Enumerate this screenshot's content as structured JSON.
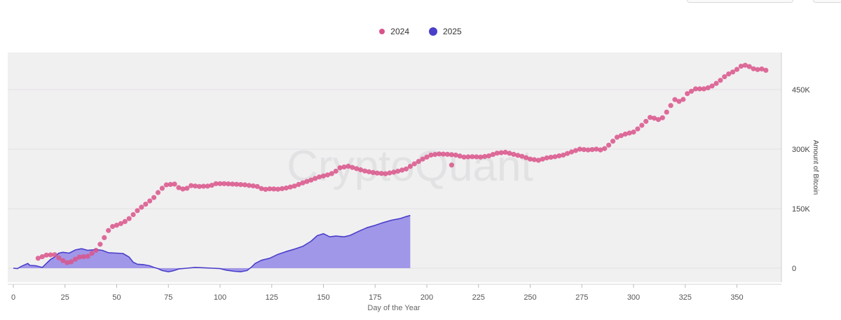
{
  "chart_data": {
    "type": "scatter+area",
    "watermark": "CryptoQuant",
    "xlabel": "Day of the Year",
    "ylabel": "Amount of Bitcoin",
    "xlim": [
      0,
      370
    ],
    "ylim": [
      -25000,
      540000
    ],
    "x_ticks": [
      0,
      25,
      50,
      75,
      100,
      125,
      150,
      175,
      200,
      225,
      250,
      275,
      300,
      325,
      350
    ],
    "y_ticks": [
      {
        "value": 0,
        "label": "0"
      },
      {
        "value": 150000,
        "label": "150K"
      },
      {
        "value": 300000,
        "label": "300K"
      },
      {
        "value": 450000,
        "label": "450K"
      }
    ],
    "series": [
      {
        "name": "2024",
        "type": "scatter",
        "color": "#d9538a",
        "keypoints": [
          [
            12,
            25000
          ],
          [
            16,
            33000
          ],
          [
            20,
            34000
          ],
          [
            23,
            22000
          ],
          [
            25,
            16000
          ],
          [
            27,
            12000
          ],
          [
            29,
            20000
          ],
          [
            32,
            28000
          ],
          [
            36,
            30000
          ],
          [
            40,
            45000
          ],
          [
            43,
            68000
          ],
          [
            46,
            95000
          ],
          [
            48,
            105000
          ],
          [
            51,
            110000
          ],
          [
            55,
            120000
          ],
          [
            58,
            135000
          ],
          [
            61,
            150000
          ],
          [
            65,
            165000
          ],
          [
            68,
            178000
          ],
          [
            71,
            197000
          ],
          [
            74,
            210000
          ],
          [
            78,
            212000
          ],
          [
            80,
            203000
          ],
          [
            83,
            198000
          ],
          [
            86,
            208000
          ],
          [
            90,
            206000
          ],
          [
            95,
            207000
          ],
          [
            98,
            213000
          ],
          [
            102,
            213000
          ],
          [
            106,
            212000
          ],
          [
            112,
            210000
          ],
          [
            118,
            206000
          ],
          [
            121,
            198000
          ],
          [
            124,
            200000
          ],
          [
            128,
            199000
          ],
          [
            132,
            202000
          ],
          [
            136,
            207000
          ],
          [
            140,
            215000
          ],
          [
            144,
            222000
          ],
          [
            148,
            230000
          ],
          [
            152,
            235000
          ],
          [
            155,
            240000
          ],
          [
            158,
            253000
          ],
          [
            162,
            257000
          ],
          [
            166,
            251000
          ],
          [
            170,
            245000
          ],
          [
            175,
            240000
          ],
          [
            180,
            238000
          ],
          [
            185,
            243000
          ],
          [
            190,
            250000
          ],
          [
            194,
            263000
          ],
          [
            198,
            275000
          ],
          [
            202,
            285000
          ],
          [
            206,
            288000
          ],
          [
            210,
            287000
          ],
          [
            214,
            285000
          ],
          [
            218,
            280000
          ],
          [
            222,
            281000
          ],
          [
            226,
            280000
          ],
          [
            230,
            283000
          ],
          [
            234,
            290000
          ],
          [
            238,
            292000
          ],
          [
            242,
            287000
          ],
          [
            246,
            282000
          ],
          [
            250,
            275000
          ],
          [
            254,
            272000
          ],
          [
            258,
            278000
          ],
          [
            262,
            281000
          ],
          [
            266,
            285000
          ],
          [
            270,
            293000
          ],
          [
            274,
            300000
          ],
          [
            278,
            298000
          ],
          [
            282,
            300000
          ],
          [
            285,
            297000
          ],
          [
            288,
            310000
          ],
          [
            292,
            330000
          ],
          [
            296,
            338000
          ],
          [
            300,
            343000
          ],
          [
            303,
            355000
          ],
          [
            306,
            370000
          ],
          [
            308,
            380000
          ],
          [
            310,
            378000
          ],
          [
            313,
            373000
          ],
          [
            315,
            385000
          ],
          [
            318,
            410000
          ],
          [
            320,
            425000
          ],
          [
            323,
            418000
          ],
          [
            326,
            440000
          ],
          [
            330,
            452000
          ],
          [
            334,
            452000
          ],
          [
            337,
            456000
          ],
          [
            341,
            469000
          ],
          [
            345,
            487000
          ],
          [
            349,
            497000
          ],
          [
            353,
            513000
          ],
          [
            356,
            508000
          ],
          [
            359,
            500000
          ],
          [
            362,
            502000
          ],
          [
            365,
            497000
          ]
        ],
        "outliers": [
          [
            212,
            260000
          ]
        ]
      },
      {
        "name": "2025",
        "type": "area",
        "color": "#4a3fc9",
        "fill": "#9b91e8",
        "points": [
          [
            0,
            0
          ],
          [
            2,
            -1000
          ],
          [
            4,
            5000
          ],
          [
            7,
            12000
          ],
          [
            8,
            7000
          ],
          [
            11,
            6000
          ],
          [
            14,
            2000
          ],
          [
            16,
            12000
          ],
          [
            18,
            22000
          ],
          [
            20,
            28000
          ],
          [
            22,
            38000
          ],
          [
            24,
            40000
          ],
          [
            27,
            38000
          ],
          [
            30,
            46000
          ],
          [
            33,
            49000
          ],
          [
            36,
            45000
          ],
          [
            40,
            47000
          ],
          [
            43,
            45000
          ],
          [
            46,
            39000
          ],
          [
            50,
            38000
          ],
          [
            53,
            37000
          ],
          [
            56,
            28000
          ],
          [
            58,
            15000
          ],
          [
            60,
            10000
          ],
          [
            63,
            9000
          ],
          [
            66,
            6000
          ],
          [
            68,
            2000
          ],
          [
            70,
            -1000
          ],
          [
            72,
            -6000
          ],
          [
            75,
            -9000
          ],
          [
            77,
            -7000
          ],
          [
            80,
            -2000
          ],
          [
            84,
            0
          ],
          [
            88,
            2000
          ],
          [
            92,
            1000
          ],
          [
            96,
            0
          ],
          [
            100,
            -1000
          ],
          [
            103,
            -5000
          ],
          [
            107,
            -8000
          ],
          [
            110,
            -9000
          ],
          [
            113,
            -6000
          ],
          [
            115,
            2000
          ],
          [
            117,
            12000
          ],
          [
            120,
            20000
          ],
          [
            124,
            25000
          ],
          [
            128,
            35000
          ],
          [
            132,
            42000
          ],
          [
            136,
            48000
          ],
          [
            140,
            55000
          ],
          [
            144,
            68000
          ],
          [
            147,
            82000
          ],
          [
            150,
            87000
          ],
          [
            153,
            79000
          ],
          [
            156,
            81000
          ],
          [
            160,
            79000
          ],
          [
            163,
            83000
          ],
          [
            167,
            93000
          ],
          [
            171,
            102000
          ],
          [
            175,
            108000
          ],
          [
            179,
            115000
          ],
          [
            183,
            121000
          ],
          [
            187,
            125000
          ],
          [
            190,
            130000
          ],
          [
            192,
            133000
          ]
        ]
      }
    ]
  }
}
